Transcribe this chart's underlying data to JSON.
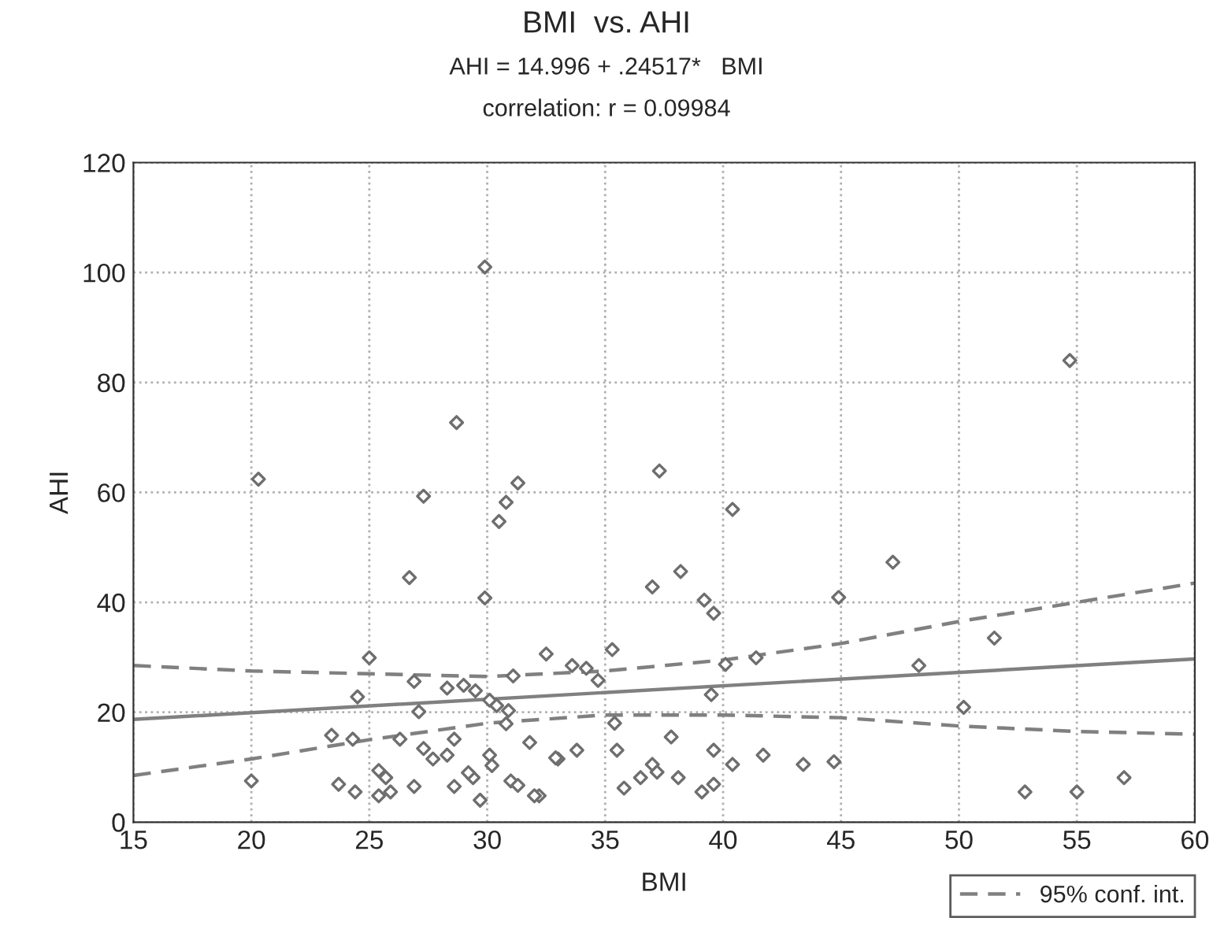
{
  "chart_data": {
    "type": "scatter",
    "title": "BMI  vs. AHI",
    "subtitle": "AHI = 14.996 + .24517*   BMI",
    "annotations": [
      "correlation: r = 0.09984"
    ],
    "xlabel": "BMI",
    "ylabel": "AHI",
    "xlim": [
      15,
      60
    ],
    "xticks": [
      15,
      20,
      25,
      30,
      35,
      40,
      45,
      50,
      55,
      60
    ],
    "ylim": [
      0,
      120
    ],
    "yticks": [
      0,
      20,
      40,
      60,
      80,
      100,
      120
    ],
    "grid": true,
    "legend": "bottom right",
    "series": [
      {
        "color": "#6e6e6e",
        "marker": "diamond",
        "x": [
          29.9,
          28.7,
          20.3,
          31.3,
          27.3,
          30.8,
          30.5,
          26.7,
          29.9,
          37.3,
          40.4,
          38.2,
          37.0,
          39.2,
          39.6,
          44.9,
          54.7,
          47.2,
          51.5,
          48.3,
          50.2,
          57.0,
          52.8,
          55.0,
          32.5,
          35.3,
          33.6,
          34.2,
          34.7,
          40.1,
          41.4,
          39.5,
          35.4,
          37.8,
          33.0,
          33.8,
          35.5,
          39.6,
          41.7,
          43.4,
          44.7,
          40.4,
          32.2,
          35.8,
          36.5,
          37.0,
          37.2,
          38.1,
          39.1,
          39.6,
          25.0,
          26.9,
          28.3,
          29.0,
          29.5,
          31.1,
          30.1,
          30.4,
          30.9,
          24.5,
          27.1,
          30.8,
          23.4,
          24.3,
          26.3,
          28.6,
          31.8,
          27.3,
          27.7,
          28.3,
          30.1,
          30.2,
          32.9,
          20.0,
          23.7,
          24.4,
          25.4,
          25.7,
          25.4,
          25.9,
          26.9,
          28.6,
          29.4,
          29.2,
          29.7,
          31.0,
          31.3,
          32.0
        ],
        "values": [
          101,
          72.7,
          62.4,
          61.7,
          59.3,
          58.2,
          54.7,
          44.5,
          40.8,
          63.9,
          56.9,
          45.6,
          42.8,
          40.4,
          38.0,
          40.9,
          84,
          47.3,
          33.5,
          28.5,
          20.9,
          8.1,
          5.5,
          5.5,
          30.6,
          31.4,
          28.5,
          28.0,
          25.8,
          28.7,
          29.9,
          23.2,
          18.0,
          15.5,
          11.5,
          13.1,
          13.1,
          13.1,
          12.2,
          10.5,
          11.0,
          10.5,
          4.8,
          6.2,
          8.1,
          10.5,
          9.1,
          8.1,
          5.5,
          6.9,
          29.9,
          25.6,
          24.4,
          24.9,
          23.9,
          26.6,
          22.2,
          21.2,
          20.3,
          22.8,
          20.1,
          17.9,
          15.8,
          15.1,
          15.1,
          15.1,
          14.5,
          13.4,
          11.5,
          12.2,
          12.2,
          10.3,
          11.7,
          7.5,
          6.9,
          5.5,
          9.4,
          8.1,
          4.8,
          5.5,
          6.5,
          6.5,
          8.1,
          9.0,
          4.0,
          7.5,
          6.7,
          4.8
        ]
      },
      {
        "type": "line",
        "color": "#808080",
        "line_style": "solid",
        "x": [
          15,
          60
        ],
        "values": [
          18.7,
          29.7
        ]
      },
      {
        "type": "line",
        "name": "95% conf. int.",
        "color": "#808080",
        "line_style": "dashed",
        "x": [
          15,
          20,
          25,
          30,
          35,
          40,
          45,
          50,
          55,
          60
        ],
        "values": [
          28.5,
          27.5,
          27,
          26.5,
          27.5,
          29.5,
          32.5,
          36.5,
          40,
          43.5
        ]
      },
      {
        "type": "line",
        "color": "#808080",
        "line_style": "dashed",
        "x": [
          15,
          20,
          25,
          30,
          35,
          40,
          45,
          50,
          55,
          60
        ],
        "values": [
          8.5,
          11.5,
          15,
          18,
          19.5,
          19.5,
          19,
          17.5,
          16.5,
          16
        ]
      }
    ]
  }
}
